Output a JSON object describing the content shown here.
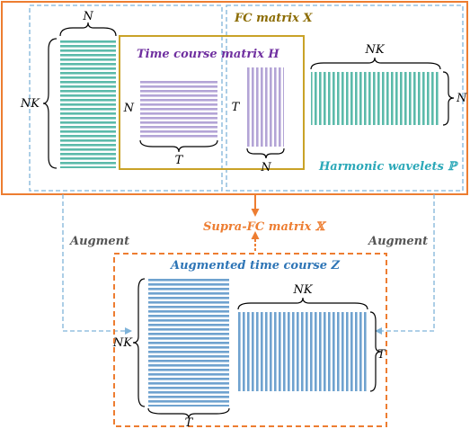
{
  "labels": {
    "fc_matrix": "FC matrix X",
    "time_course_matrix": "Time course matrix H",
    "harmonic_wavelets": "Harmonic wavelets ℙ",
    "supra_fc_matrix": "Supra-FC matrix 𝕏",
    "augmented_time_course": "Augmented time course Z",
    "augment_left": "Augment",
    "augment_right": "Augment"
  },
  "dims": {
    "fc_top": "N",
    "fc_left": "NK",
    "h_left": "N",
    "h_bottom": "T",
    "p_left": "T",
    "p_bottom": "N",
    "wav_top": "NK",
    "wav_right": "N",
    "z_left": "NK",
    "z_bottom": "T",
    "zw_top": "NK",
    "zw_right": "T"
  },
  "colors": {
    "orange": "#ED7D31",
    "blue_dash": "#7FB3D9",
    "gold": "#C9A227",
    "teal": "#5BBAAA",
    "lavender": "#B3A4D6",
    "steel_blue": "#6FA2CF",
    "purple_text": "#7030A0",
    "gold_text": "#8B6B00",
    "teal_text": "#2BA8B8",
    "orange_text": "#ED7D31",
    "blue_text": "#2E75B6",
    "gray_text": "#555555"
  }
}
